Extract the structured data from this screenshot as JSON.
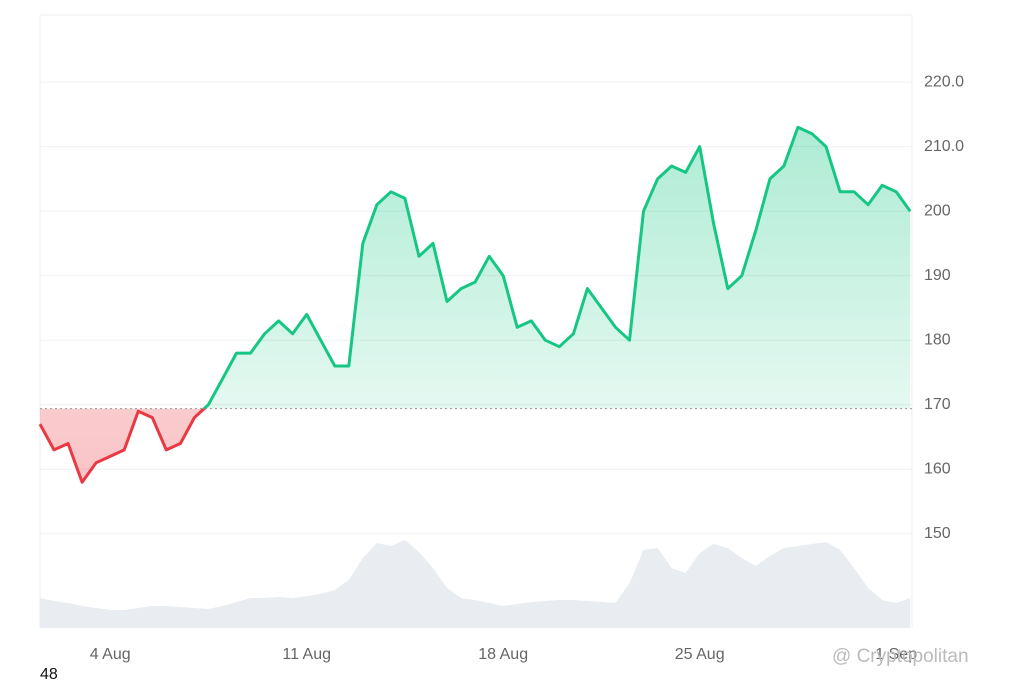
{
  "chart_data": {
    "type": "line",
    "categories": [
      null,
      null,
      null,
      null,
      null,
      "4 Aug",
      null,
      null,
      null,
      null,
      null,
      null,
      null,
      null,
      null,
      null,
      null,
      null,
      null,
      "11 Aug",
      null,
      null,
      null,
      null,
      null,
      null,
      null,
      null,
      null,
      null,
      null,
      null,
      null,
      "18 Aug",
      null,
      null,
      null,
      null,
      null,
      null,
      null,
      null,
      null,
      null,
      null,
      null,
      null,
      "25 Aug",
      null,
      null,
      null,
      null,
      null,
      null,
      null,
      null,
      null,
      null,
      null,
      null,
      null,
      "1 Sep",
      null
    ],
    "values": [
      167,
      163,
      164,
      158,
      161,
      162,
      163,
      169,
      168,
      163,
      164,
      168,
      170,
      174,
      178,
      178,
      181,
      183,
      181,
      184,
      180,
      176,
      176,
      195,
      201,
      203,
      202,
      193,
      195,
      186,
      188,
      189,
      193,
      190,
      182,
      183,
      180,
      179,
      181,
      188,
      185,
      182,
      180,
      200,
      205,
      207,
      206,
      210,
      198,
      188,
      190,
      197,
      205,
      207,
      213,
      212,
      210,
      203,
      203,
      201,
      204,
      203,
      200
    ],
    "volume": [
      30,
      27,
      25,
      22,
      20,
      18,
      18,
      20,
      22,
      22,
      21,
      20,
      19,
      22,
      26,
      30,
      30,
      31,
      30,
      32,
      34,
      38,
      48,
      70,
      85,
      82,
      88,
      76,
      60,
      40,
      30,
      28,
      25,
      22,
      24,
      26,
      27,
      28,
      28,
      27,
      26,
      25,
      45,
      78,
      80,
      60,
      55,
      75,
      84,
      80,
      70,
      62,
      72,
      80,
      82,
      84,
      86,
      78,
      60,
      40,
      28,
      25,
      30
    ],
    "baseline": 169.4,
    "up_color": "#16c784",
    "down_color": "#ea3943",
    "ylim": [
      135.4,
      230.4
    ],
    "yticks": [
      150,
      160,
      170,
      180,
      190,
      {
        "value": 200,
        "label": "200"
      },
      {
        "value": 210,
        "label": "210.0"
      },
      {
        "value": 220,
        "label": "220.0"
      }
    ],
    "grid": true
  },
  "footer": {
    "count": "48",
    "watermark": "@ Cryptopolitan"
  }
}
